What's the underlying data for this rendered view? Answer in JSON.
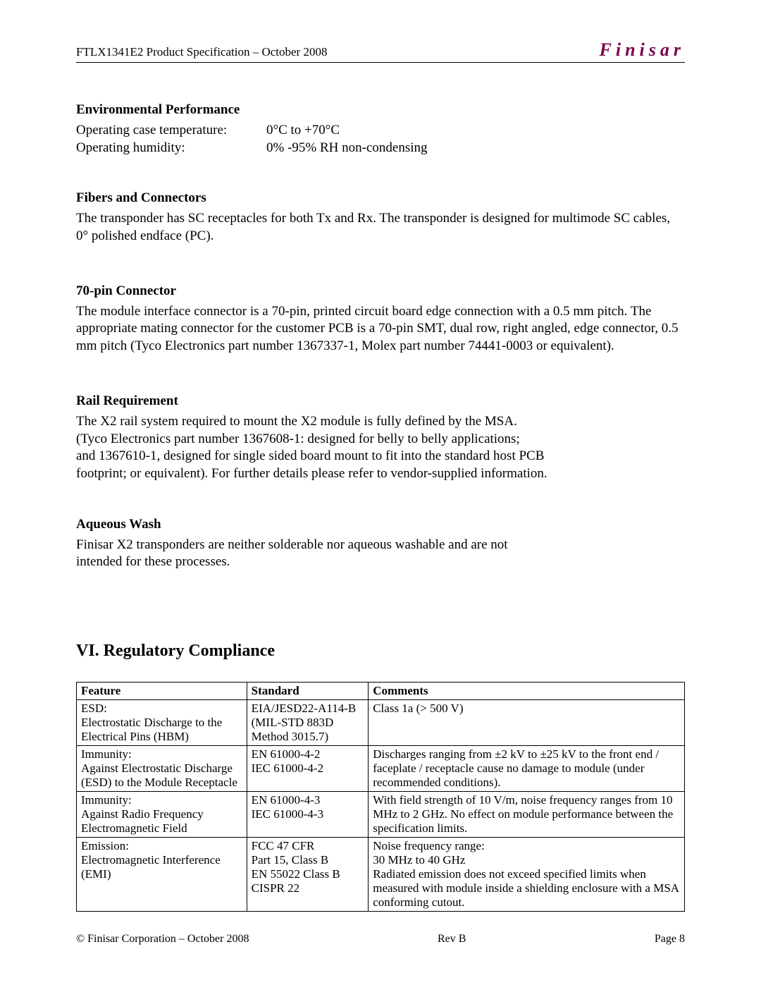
{
  "header": {
    "left": "FTLX1341E2 Product Specification – October 2008",
    "brand": "Finisar"
  },
  "sections": {
    "env": {
      "heading": "Environmental Performance",
      "rows": [
        {
          "label": "Operating case temperature:",
          "value": "0°C to +70°C"
        },
        {
          "label": "Operating humidity:",
          "value": "0% -95% RH non-condensing"
        }
      ]
    },
    "fibers": {
      "heading": "Fibers and Connectors",
      "text": "The transponder has SC receptacles for both Tx and Rx. The transponder is designed for multimode SC cables, 0° polished endface (PC)."
    },
    "pin70": {
      "heading": "70-pin Connector",
      "text": "The module interface connector is a 70-pin, printed circuit board edge connection with a 0.5 mm pitch. The appropriate mating connector for the customer PCB is a 70-pin SMT, dual row, right angled, edge connector, 0.5 mm pitch (Tyco Electronics part number 1367337-1, Molex part number 74441-0003 or equivalent)."
    },
    "rail": {
      "heading": "Rail Requirement",
      "lines": [
        "The X2 rail system required to mount the X2 module is fully defined by the MSA.",
        "(Tyco Electronics part number 1367608-1: designed for belly to belly applications;",
        "and 1367610-1, designed for single sided board mount to fit into the standard host PCB",
        "footprint; or equivalent). For further details please refer to vendor-supplied information."
      ]
    },
    "aqueous": {
      "heading": "Aqueous Wash",
      "lines": [
        "Finisar X2 transponders are neither solderable nor aqueous washable and are not",
        "intended for these processes."
      ]
    }
  },
  "regulatory": {
    "heading": "VI.  Regulatory Compliance",
    "columns": [
      "Feature",
      "Standard",
      "Comments"
    ],
    "rows": [
      {
        "feature": "ESD:\nElectrostatic Discharge to the Electrical Pins (HBM)",
        "standard": "EIA/JESD22-A114-B\n(MIL-STD 883D\nMethod 3015.7)",
        "comments": "Class 1a (> 500 V)"
      },
      {
        "feature": "Immunity:\nAgainst Electrostatic Discharge (ESD) to the Module Receptacle",
        "standard": "EN 61000-4-2\nIEC 61000-4-2",
        "comments": "Discharges ranging from ±2 kV to ±25 kV to the front end / faceplate / receptacle cause no damage to module (under recommended conditions)."
      },
      {
        "feature": "Immunity:\nAgainst Radio Frequency Electromagnetic Field",
        "standard": "EN 61000-4-3\nIEC 61000-4-3",
        "comments": "With field strength of 10 V/m, noise frequency ranges from 10 MHz to 2 GHz. No effect on module performance between the specification limits."
      },
      {
        "feature": "Emission:\nElectromagnetic Interference (EMI)",
        "standard": "FCC 47 CFR\nPart 15, Class B\nEN 55022 Class B\nCISPR 22",
        "comments": "Noise frequency range:\n30 MHz to 40 GHz\nRadiated emission does not exceed specified limits when measured with module inside a shielding enclosure with a MSA conforming cutout."
      }
    ]
  },
  "footer": {
    "left": "© Finisar Corporation – October 2008",
    "center": "Rev B",
    "right": "Page 8"
  },
  "colors": {
    "brand": "#7a0050",
    "text": "#000000",
    "border": "#000000",
    "background": "#ffffff"
  },
  "typography": {
    "body_fontsize_pt": 14,
    "heading_fontsize_pt": 14,
    "main_heading_fontsize_pt": 18,
    "table_fontsize_pt": 12,
    "font_family": "Times New Roman"
  }
}
